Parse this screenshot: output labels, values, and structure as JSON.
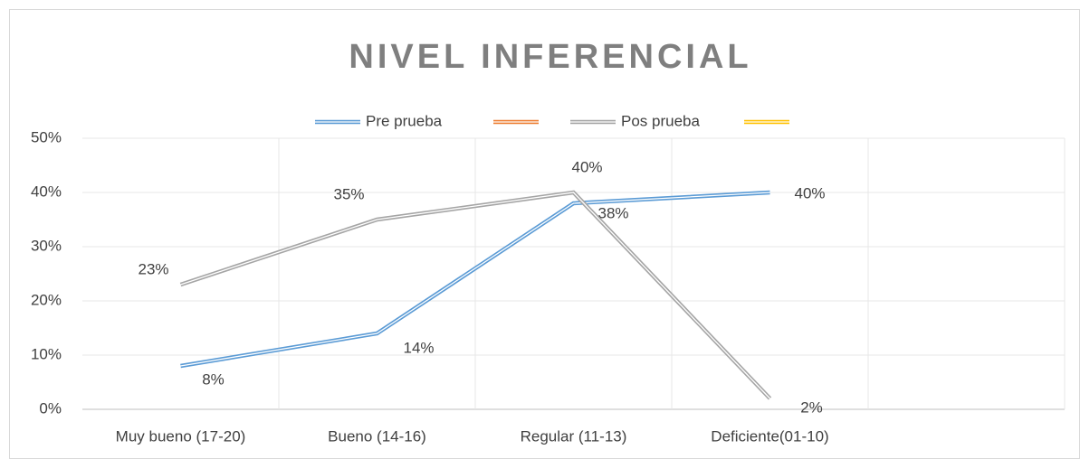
{
  "chart_data": {
    "type": "line",
    "title": "NIVEL INFERENCIAL",
    "categories": [
      "Muy bueno (17-20)",
      "Bueno (14-16)",
      "Regular (11-13)",
      "Deficiente(01-10)",
      null
    ],
    "series": [
      {
        "name": "Pre prueba",
        "color": "#5b9bd5",
        "values": [
          8,
          14,
          38,
          40,
          null
        ],
        "value_labels": [
          "8%",
          "14%",
          "38%",
          "40%",
          null
        ]
      },
      {
        "color": "#ed7d31",
        "values": [
          null,
          null,
          null,
          null,
          null
        ]
      },
      {
        "name": "Pos prueba",
        "color": "#a5a5a5",
        "values": [
          23,
          35,
          40,
          2,
          null
        ],
        "value_labels": [
          "23%",
          "35%",
          "40%",
          "2%",
          null
        ]
      },
      {
        "color": "#ffc000",
        "values": [
          null,
          null,
          null,
          null,
          null
        ]
      }
    ],
    "ylim": [
      0,
      50
    ],
    "yticks": [
      {
        "value": 0,
        "label": "0%"
      },
      {
        "value": 10,
        "label": "10%"
      },
      {
        "value": 20,
        "label": "20%"
      },
      {
        "value": 30,
        "label": "30%"
      },
      {
        "value": 40,
        "label": "40%"
      },
      {
        "value": 50,
        "label": "50%"
      }
    ],
    "grid": true,
    "legend": "top"
  }
}
